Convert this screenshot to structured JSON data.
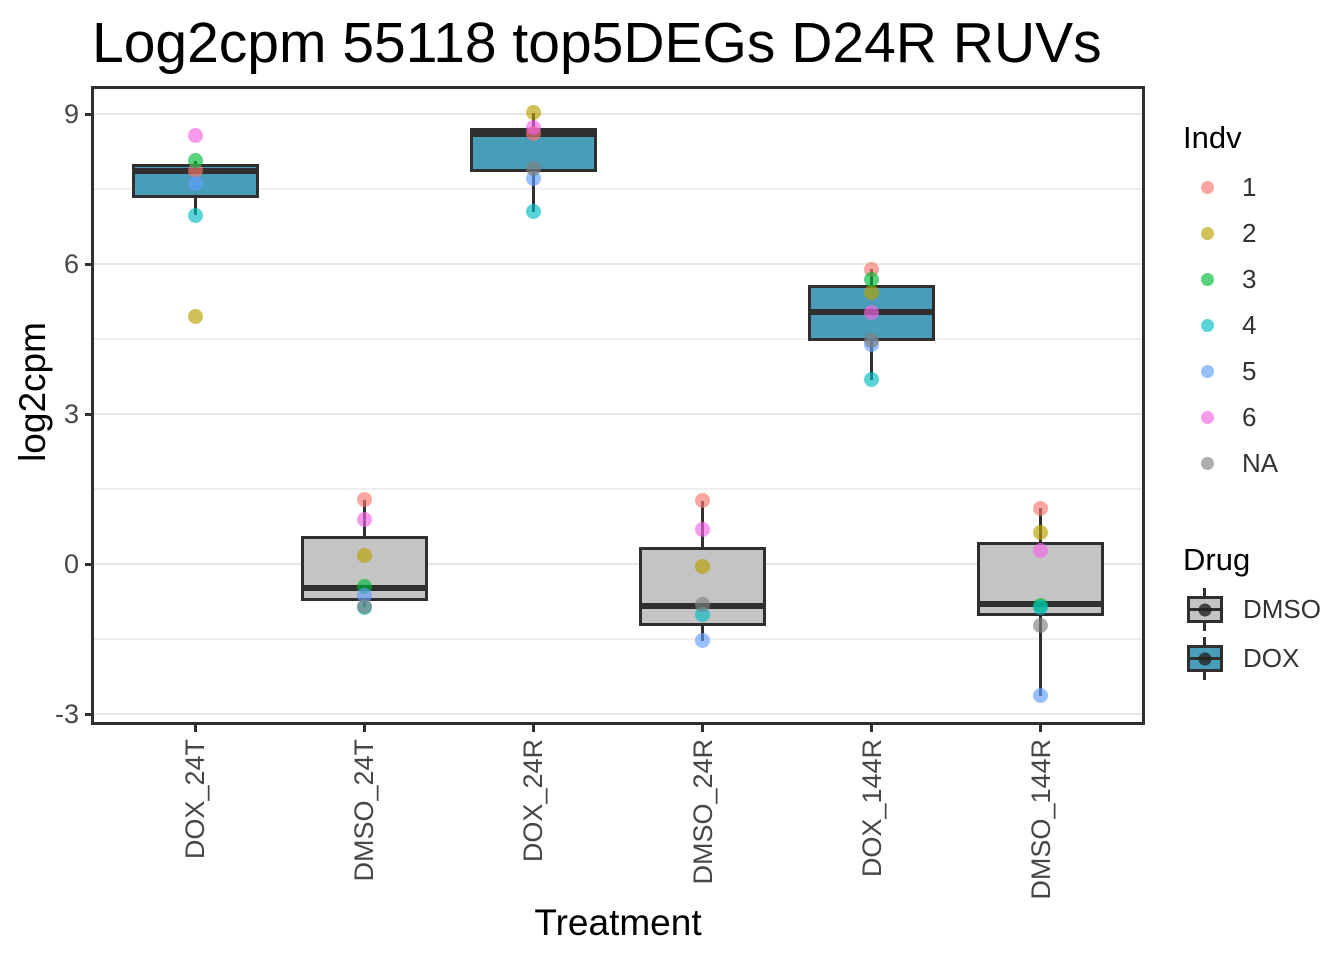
{
  "title": "Log2cpm 55118 top5DEGs D24R RUVs",
  "x_axis": {
    "title": "Treatment",
    "categories": [
      "DOX_24T",
      "DMSO_24T",
      "DOX_24R",
      "DMSO_24R",
      "DOX_144R",
      "DMSO_144R"
    ]
  },
  "y_axis": {
    "title": "log2cpm",
    "tick_labels": [
      "9",
      "6",
      "3",
      "0",
      "-3"
    ]
  },
  "legend": {
    "indv": {
      "title": "Indv",
      "items": [
        "1",
        "2",
        "3",
        "4",
        "5",
        "6",
        "NA"
      ]
    },
    "drug": {
      "title": "Drug",
      "items": [
        "DMSO",
        "DOX"
      ]
    }
  },
  "chart_data": {
    "type": "boxplot",
    "title": "Log2cpm 55118 top5DEGs D24R RUVs",
    "xlabel": "Treatment",
    "ylabel": "log2cpm",
    "ylim": [
      -3.16,
      9.5
    ],
    "y_major_ticks": [
      9,
      6,
      3,
      0,
      -3
    ],
    "y_minor_gridlines": [
      7.5,
      4.5,
      1.5,
      -1.5
    ],
    "grid": true,
    "legend_position": "right",
    "categories": [
      "DOX_24T",
      "DMSO_24T",
      "DOX_24R",
      "DMSO_24R",
      "DOX_144R",
      "DMSO_144R"
    ],
    "indv_colors": {
      "1": "rgba(248,118,109,0.65)",
      "2": "rgba(183,159,0,0.65)",
      "3": "rgba(0,186,56,0.65)",
      "4": "rgba(0,191,196,0.65)",
      "5": "rgba(97,156,255,0.65)",
      "6": "rgba(245,100,227,0.65)",
      "NA": "rgba(127,127,127,0.65)"
    },
    "drug_fills": {
      "DMSO": "#C4C4C4",
      "DOX": "#4A9DB8"
    },
    "boxes": [
      {
        "category": "DOX_24T",
        "drug": "DOX",
        "q1": 7.33,
        "median": 7.86,
        "q3": 8.01,
        "whisker_low": 6.98,
        "whisker_high": 8.07,
        "points": [
          {
            "indv": "1",
            "value": 7.88
          },
          {
            "indv": "2",
            "value": 4.95
          },
          {
            "indv": "3",
            "value": 8.07
          },
          {
            "indv": "4",
            "value": 6.98
          },
          {
            "indv": "5",
            "value": 7.61
          },
          {
            "indv": "6",
            "value": 8.58
          }
        ]
      },
      {
        "category": "DMSO_24T",
        "drug": "DMSO",
        "q1": -0.74,
        "median": -0.47,
        "q3": 0.56,
        "whisker_low": -0.86,
        "whisker_high": 1.29,
        "points": [
          {
            "indv": "1",
            "value": 1.29
          },
          {
            "indv": "2",
            "value": 0.17
          },
          {
            "indv": "3",
            "value": -0.45
          },
          {
            "indv": "4",
            "value": -0.86
          },
          {
            "indv": "5",
            "value": -0.62
          },
          {
            "indv": "6",
            "value": 0.9
          },
          {
            "indv": "NA",
            "value": -0.85
          }
        ]
      },
      {
        "category": "DOX_24R",
        "drug": "DOX",
        "q1": 7.85,
        "median": 8.61,
        "q3": 8.72,
        "whisker_low": 7.05,
        "whisker_high": 9.03,
        "points": [
          {
            "indv": "1",
            "value": 8.61
          },
          {
            "indv": "2",
            "value": 9.03
          },
          {
            "indv": "4",
            "value": 7.05
          },
          {
            "indv": "5",
            "value": 7.71
          },
          {
            "indv": "6",
            "value": 8.73
          },
          {
            "indv": "NA",
            "value": 7.91
          }
        ]
      },
      {
        "category": "DMSO_24R",
        "drug": "DMSO",
        "q1": -1.23,
        "median": -0.83,
        "q3": 0.35,
        "whisker_low": -1.53,
        "whisker_high": 1.27,
        "points": [
          {
            "indv": "1",
            "value": 1.27
          },
          {
            "indv": "2",
            "value": -0.04
          },
          {
            "indv": "4",
            "value": -1.01
          },
          {
            "indv": "5",
            "value": -1.53
          },
          {
            "indv": "6",
            "value": 0.7
          },
          {
            "indv": "NA",
            "value": -0.8
          }
        ]
      },
      {
        "category": "DOX_144R",
        "drug": "DOX",
        "q1": 4.46,
        "median": 5.05,
        "q3": 5.59,
        "whisker_low": 3.69,
        "whisker_high": 5.9,
        "points": [
          {
            "indv": "1",
            "value": 5.9
          },
          {
            "indv": "2",
            "value": 5.44
          },
          {
            "indv": "3",
            "value": 5.69
          },
          {
            "indv": "4",
            "value": 3.69
          },
          {
            "indv": "5",
            "value": 4.4
          },
          {
            "indv": "6",
            "value": 5.04
          },
          {
            "indv": "NA",
            "value": 4.47
          }
        ]
      },
      {
        "category": "DMSO_144R",
        "drug": "DMSO",
        "q1": -1.03,
        "median": -0.79,
        "q3": 0.44,
        "whisker_low": -2.63,
        "whisker_high": 1.12,
        "points": [
          {
            "indv": "1",
            "value": 1.12
          },
          {
            "indv": "2",
            "value": 0.63
          },
          {
            "indv": "3",
            "value": -0.82
          },
          {
            "indv": "4",
            "value": -0.86
          },
          {
            "indv": "5",
            "value": -2.63
          },
          {
            "indv": "6",
            "value": 0.27
          },
          {
            "indv": "NA",
            "value": -1.23
          }
        ]
      }
    ]
  }
}
